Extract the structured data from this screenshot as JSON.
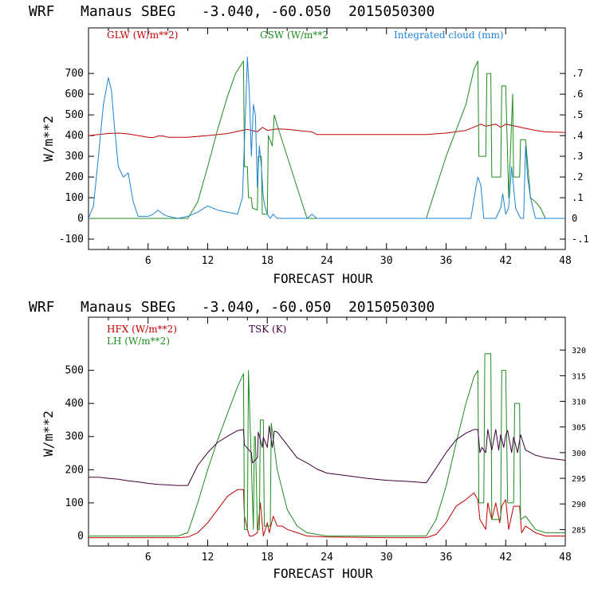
{
  "colors": {
    "red": "#c00000",
    "green": "#1e8c1e",
    "blue": "#1e82d2",
    "purple": "#3c003c",
    "axis": "#000000"
  },
  "chart_data": [
    {
      "type": "line",
      "title": "WRF   Manaus SBEG   -3.040, -60.050  2015050300",
      "xlabel": "FORECAST HOUR",
      "ylabel": "W/m**2",
      "xlim": [
        0,
        48
      ],
      "ylim": [
        -150,
        920
      ],
      "xticks": [
        6,
        12,
        18,
        24,
        30,
        36,
        42,
        48
      ],
      "yticks": [
        -100,
        0,
        100,
        200,
        300,
        400,
        500,
        600,
        700
      ],
      "ytick_labels": [
        "-100",
        "0",
        "100",
        "200",
        "300",
        "400",
        "500",
        "600",
        "700"
      ],
      "y2lim": [
        -0.15,
        0.92
      ],
      "y2ticks": [
        -0.1,
        0,
        0.1,
        0.2,
        0.3,
        0.4,
        0.5,
        0.6,
        0.7
      ],
      "y2tick_labels": [
        "-.1",
        "0",
        ".1",
        ".2",
        ".3",
        ".4",
        ".5",
        ".6",
        ".7"
      ],
      "series": [
        {
          "name": "GLW (W/m**2)",
          "color": "#c00000",
          "axis": "left",
          "x": [
            0,
            1,
            2,
            3,
            4,
            5,
            6,
            6.5,
            7,
            7.5,
            8,
            10,
            12,
            14,
            15,
            16,
            17,
            17.5,
            18,
            19,
            20,
            21,
            22,
            22.5,
            23,
            26,
            30,
            34,
            36,
            38,
            39,
            39.5,
            40,
            41,
            41.5,
            42,
            43,
            44,
            45,
            46,
            48
          ],
          "y": [
            400,
            405,
            410,
            412,
            408,
            400,
            392,
            390,
            398,
            398,
            392,
            392,
            400,
            410,
            420,
            430,
            418,
            440,
            425,
            432,
            430,
            425,
            420,
            418,
            405,
            405,
            405,
            405,
            412,
            425,
            445,
            455,
            445,
            455,
            440,
            455,
            445,
            435,
            425,
            418,
            415
          ]
        },
        {
          "name": "GSW (W/m**2",
          "color": "#1e8c1e",
          "axis": "left",
          "x": [
            0,
            10,
            11,
            12,
            13,
            14,
            14.8,
            15.6,
            15.7,
            16,
            16.1,
            16.4,
            16.5,
            17,
            17.1,
            17.4,
            17.5,
            18,
            18.1,
            18.5,
            18.7,
            19,
            20,
            21,
            22,
            34,
            36,
            38,
            38.8,
            39.2,
            39.3,
            40,
            40.1,
            40.5,
            40.6,
            41.5,
            41.6,
            42,
            42.3,
            42.7,
            42.8,
            43.4,
            43.5,
            44,
            44.5,
            45,
            45.5,
            46,
            48
          ],
          "y": [
            0,
            0,
            80,
            250,
            430,
            590,
            700,
            760,
            250,
            250,
            100,
            100,
            50,
            40,
            300,
            300,
            20,
            20,
            400,
            350,
            500,
            450,
            300,
            150,
            0,
            0,
            300,
            550,
            720,
            760,
            300,
            300,
            700,
            700,
            200,
            200,
            640,
            640,
            100,
            600,
            200,
            200,
            380,
            380,
            100,
            80,
            50,
            0,
            0
          ]
        },
        {
          "name": "Integrated cloud (mm)",
          "color": "#1e82d2",
          "axis": "right",
          "x": [
            0,
            0.5,
            1,
            1.5,
            2,
            2.3,
            2.6,
            3,
            3.5,
            4,
            4.5,
            5,
            5.5,
            6,
            6.5,
            7,
            7.5,
            8,
            9,
            10,
            11,
            12,
            13,
            14,
            15,
            15.5,
            15.8,
            16,
            16.2,
            16.4,
            16.6,
            16.8,
            17,
            17.2,
            17.4,
            17.6,
            17.8,
            18,
            18.3,
            18.6,
            19,
            19.5,
            20,
            21,
            22,
            22.5,
            23,
            38,
            38.5,
            39,
            39.2,
            39.5,
            39.8,
            40.2,
            40.5,
            41,
            41.5,
            41.7,
            42,
            42.3,
            42.6,
            43,
            43.5,
            43.8,
            44,
            44.2,
            44.5,
            45,
            46,
            48
          ],
          "y": [
            0,
            0.06,
            0.3,
            0.55,
            0.68,
            0.62,
            0.45,
            0.25,
            0.2,
            0.22,
            0.08,
            0.01,
            0.01,
            0.01,
            0.02,
            0.04,
            0.02,
            0.01,
            0.0,
            0.01,
            0.03,
            0.06,
            0.04,
            0.03,
            0.02,
            0.1,
            0.5,
            0.78,
            0.6,
            0.3,
            0.55,
            0.5,
            0.15,
            0.35,
            0.25,
            0.1,
            0.05,
            0.02,
            0.0,
            0.02,
            0.0,
            0.0,
            0.0,
            0.0,
            0.0,
            0.02,
            0.0,
            0.0,
            0.0,
            0.15,
            0.2,
            0.16,
            0.0,
            0.0,
            0.0,
            0.0,
            0.05,
            0.12,
            0.02,
            0.05,
            0.25,
            0.05,
            0.0,
            0.0,
            0.35,
            0.2,
            0.1,
            0.0,
            0.0,
            0.0
          ]
        }
      ]
    },
    {
      "type": "line",
      "title": "WRF   Manaus SBEG   -3.040, -60.050  2015050300",
      "xlabel": "FORECAST HOUR",
      "ylabel": "W/m**2",
      "xlim": [
        0,
        48
      ],
      "ylim": [
        -30,
        660
      ],
      "xticks": [
        6,
        12,
        18,
        24,
        30,
        36,
        42,
        48
      ],
      "yticks": [
        0,
        100,
        200,
        300,
        400,
        500
      ],
      "ytick_labels": [
        "0",
        "100",
        "200",
        "300",
        "400",
        "500"
      ],
      "y2lim": [
        281.8,
        326.4
      ],
      "y2ticks": [
        285,
        290,
        295,
        300,
        305,
        310,
        315,
        320
      ],
      "y2tick_labels": [
        "285",
        "290",
        "295",
        "300",
        "305",
        "310",
        "315",
        "320"
      ],
      "series": [
        {
          "name": "HFX (W/m**2)",
          "color": "#c00000",
          "axis": "left",
          "x": [
            0,
            6,
            9,
            10,
            11,
            12,
            13,
            14,
            15,
            15.6,
            15.7,
            16,
            16.2,
            16.5,
            17,
            17.3,
            17.6,
            18,
            18.2,
            18.6,
            19,
            19.5,
            20,
            21,
            22,
            24,
            30,
            34,
            35,
            36,
            37,
            38,
            38.8,
            39.2,
            39.4,
            40,
            40.2,
            40.6,
            41,
            41.4,
            41.6,
            42,
            42.3,
            42.8,
            43.4,
            43.6,
            44,
            44.5,
            45,
            46,
            48
          ],
          "y": [
            -5,
            -5,
            -5,
            -3,
            10,
            40,
            80,
            120,
            140,
            140,
            60,
            20,
            0,
            0,
            10,
            100,
            0,
            40,
            10,
            60,
            30,
            30,
            20,
            10,
            0,
            -3,
            -5,
            -5,
            5,
            40,
            90,
            110,
            130,
            110,
            50,
            20,
            100,
            50,
            100,
            40,
            90,
            110,
            20,
            90,
            90,
            10,
            30,
            20,
            10,
            0,
            0
          ]
        },
        {
          "name": "LH (W/m**2)",
          "color": "#1e8c1e",
          "axis": "left",
          "x": [
            0,
            6,
            9,
            10,
            11,
            12,
            13,
            14,
            15,
            15.6,
            15.7,
            16,
            16.1,
            16.6,
            16.7,
            16.8,
            17,
            17.2,
            17.3,
            17.6,
            17.7,
            18.3,
            18.4,
            19,
            20,
            21,
            22,
            24,
            30,
            34,
            35,
            36,
            37,
            38,
            38.8,
            39.2,
            39.3,
            39.8,
            39.9,
            40.5,
            40.6,
            41.5,
            41.6,
            42,
            42.2,
            42.8,
            42.9,
            43.4,
            43.5,
            44,
            44.5,
            45,
            46,
            48
          ],
          "y": [
            0,
            0,
            0,
            10,
            100,
            200,
            290,
            370,
            450,
            490,
            20,
            20,
            500,
            20,
            300,
            300,
            20,
            20,
            350,
            350,
            30,
            30,
            340,
            200,
            80,
            30,
            10,
            0,
            0,
            0,
            50,
            150,
            280,
            400,
            480,
            500,
            100,
            100,
            550,
            550,
            50,
            50,
            500,
            500,
            100,
            100,
            400,
            400,
            50,
            60,
            40,
            20,
            10,
            10
          ]
        },
        {
          "name": "TSK (K)",
          "color": "#3c003c",
          "axis": "right",
          "x": [
            0,
            1,
            2,
            3,
            4,
            5,
            6,
            7,
            8,
            9,
            10,
            11,
            12,
            13,
            14,
            15,
            15.6,
            15.7,
            16.4,
            16.5,
            17,
            17.1,
            17.5,
            17.6,
            18,
            18.2,
            18.5,
            18.7,
            19,
            20,
            21,
            22,
            23,
            24,
            26,
            28,
            30,
            32,
            34,
            35,
            36,
            37,
            38,
            38.8,
            39.2,
            39.4,
            39.6,
            40,
            40.2,
            40.6,
            41,
            41.3,
            41.5,
            41.8,
            42,
            42.2,
            42.6,
            42.8,
            43.2,
            43.5,
            44,
            45,
            46,
            48
          ],
          "y": [
            295.2,
            295.2,
            295.0,
            294.8,
            294.5,
            294.3,
            294.0,
            293.8,
            293.7,
            293.6,
            293.6,
            297.5,
            300.0,
            302.0,
            303.2,
            304.3,
            304.5,
            301.5,
            300.0,
            298.0,
            299.0,
            304.0,
            301.0,
            303.0,
            301.0,
            305.2,
            301.0,
            304.2,
            304.0,
            301.5,
            299.0,
            298.0,
            296.8,
            296.0,
            295.5,
            295.0,
            294.6,
            294.4,
            294.1,
            297.0,
            300.0,
            302.5,
            303.8,
            304.5,
            304.5,
            300.0,
            301.0,
            300.0,
            304.5,
            300.5,
            304.5,
            300.5,
            303.5,
            301.0,
            303.5,
            304.3,
            300.0,
            303.0,
            300.0,
            303.5,
            300.5,
            299.5,
            299.0,
            298.5
          ]
        }
      ]
    }
  ]
}
